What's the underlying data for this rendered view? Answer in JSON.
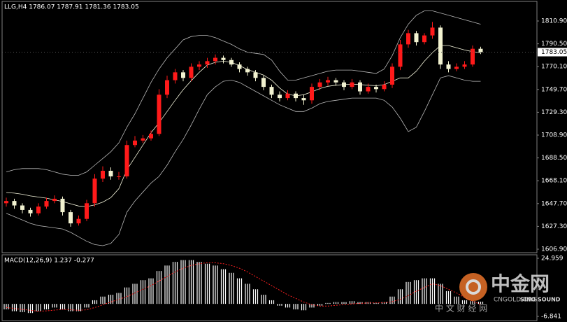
{
  "chart_data": [
    {
      "type": "candlestick",
      "title": "LLG,H4  1786.07 1787.91 1781.36 1783.05",
      "open": [
        1648,
        1650,
        1646,
        1642,
        1639,
        1645,
        1650,
        1652,
        1640,
        1630,
        1634,
        1648,
        1670,
        1677,
        1672,
        1672,
        1700,
        1704,
        1706,
        1710,
        1745,
        1758,
        1765,
        1760,
        1770,
        1772,
        1775,
        1778,
        1776,
        1772,
        1768,
        1765,
        1760,
        1752,
        1745,
        1742,
        1746,
        1742,
        1740,
        1752,
        1756,
        1758,
        1756,
        1752,
        1756,
        1748,
        1752,
        1750,
        1754,
        1770,
        1790,
        1800,
        1792,
        1798,
        1805,
        1772,
        1768,
        1770,
        1772,
        1786.07
      ],
      "high": [
        1653,
        1652,
        1648,
        1644,
        1648,
        1653,
        1655,
        1654,
        1642,
        1637,
        1651,
        1674,
        1681,
        1680,
        1676,
        1704,
        1708,
        1709,
        1713,
        1750,
        1762,
        1768,
        1767,
        1773,
        1775,
        1778,
        1781,
        1780,
        1778,
        1774,
        1770,
        1767,
        1762,
        1754,
        1748,
        1749,
        1748,
        1745,
        1755,
        1759,
        1761,
        1760,
        1758,
        1759,
        1758,
        1755,
        1754,
        1757,
        1773,
        1794,
        1803,
        1802,
        1800,
        1810,
        1807,
        1775,
        1773,
        1775,
        1789,
        1787.91
      ],
      "low": [
        1645,
        1643,
        1639,
        1636,
        1637,
        1643,
        1648,
        1637,
        1627,
        1628,
        1632,
        1645,
        1667,
        1669,
        1669,
        1670,
        1698,
        1702,
        1704,
        1708,
        1742,
        1755,
        1757,
        1757,
        1767,
        1769,
        1772,
        1773,
        1770,
        1765,
        1762,
        1757,
        1749,
        1742,
        1739,
        1740,
        1739,
        1736,
        1737,
        1749,
        1753,
        1753,
        1749,
        1750,
        1745,
        1746,
        1747,
        1748,
        1751,
        1767,
        1787,
        1789,
        1790,
        1795,
        1768,
        1765,
        1766,
        1768,
        1770,
        1781.36
      ],
      "close": [
        1650,
        1646,
        1642,
        1639,
        1645,
        1650,
        1652,
        1640,
        1630,
        1634,
        1648,
        1670,
        1677,
        1672,
        1672,
        1700,
        1704,
        1706,
        1710,
        1745,
        1758,
        1765,
        1760,
        1770,
        1772,
        1775,
        1778,
        1776,
        1772,
        1768,
        1765,
        1760,
        1752,
        1745,
        1742,
        1746,
        1742,
        1740,
        1752,
        1756,
        1758,
        1756,
        1752,
        1756,
        1748,
        1752,
        1750,
        1754,
        1770,
        1790,
        1800,
        1792,
        1798,
        1805,
        1772,
        1768,
        1770,
        1772,
        1786.07,
        1783.05
      ],
      "up_color": "#ff1a1a",
      "down_color": "#f2f2d0",
      "lines": [
        {
          "color": "#b8b8b8",
          "values": [
            1676,
            1678,
            1679,
            1679,
            1679,
            1678,
            1676,
            1674,
            1673,
            1673,
            1676,
            1682,
            1688,
            1694,
            1702,
            1716,
            1728,
            1742,
            1756,
            1768,
            1778,
            1786,
            1794,
            1797,
            1798,
            1798,
            1796,
            1793,
            1790,
            1786,
            1783,
            1782,
            1781,
            1776,
            1766,
            1758,
            1758,
            1760,
            1762,
            1764,
            1766,
            1767,
            1767,
            1767,
            1766,
            1765,
            1764,
            1768,
            1780,
            1796,
            1808,
            1816,
            1820,
            1820,
            1818,
            1816,
            1814,
            1812,
            1810,
            1808
          ]
        },
        {
          "color": "#f5f5dc",
          "values": [
            1657.5,
            1657,
            1656,
            1654.5,
            1653.5,
            1652.5,
            1651,
            1649.5,
            1647.5,
            1645.5,
            1645,
            1646.5,
            1649,
            1653,
            1661,
            1678,
            1689,
            1700,
            1711,
            1720,
            1730,
            1740,
            1749.5,
            1757.5,
            1765,
            1771.5,
            1774,
            1775,
            1774,
            1771,
            1767.5,
            1765,
            1762.5,
            1758,
            1751,
            1745.5,
            1744,
            1745,
            1747.5,
            1750.5,
            1752.5,
            1753.5,
            1754,
            1754.5,
            1754,
            1753.5,
            1753,
            1754,
            1757,
            1760,
            1760,
            1766,
            1775,
            1782.5,
            1789,
            1789,
            1787,
            1785,
            1783.5,
            1782.5
          ]
        },
        {
          "color": "#b8b8b8",
          "values": [
            1639,
            1636,
            1633,
            1630,
            1628,
            1627,
            1626,
            1625,
            1622,
            1618,
            1614,
            1611,
            1610,
            1612,
            1620,
            1640,
            1650,
            1658,
            1666,
            1672,
            1682,
            1694,
            1705,
            1718,
            1732,
            1745,
            1752,
            1757,
            1758,
            1756,
            1752,
            1748,
            1744,
            1740,
            1736,
            1733,
            1730,
            1730,
            1733,
            1737,
            1739,
            1740,
            1741,
            1742,
            1742,
            1742,
            1742,
            1740,
            1734,
            1724,
            1712,
            1716,
            1730,
            1745,
            1760,
            1762,
            1760,
            1758,
            1757,
            1757
          ]
        }
      ],
      "last_price": 1783.05,
      "ylim": [
        1603.77,
        1829.67
      ],
      "yticks": [
        {
          "value": 1810.9,
          "label": "1810.90"
        },
        {
          "value": 1790.5,
          "label": "1790.50"
        },
        {
          "value": 1770.1,
          "label": "1770.10"
        },
        {
          "value": 1749.7,
          "label": "1749.70"
        },
        {
          "value": 1729.3,
          "label": "1729.30"
        },
        {
          "value": 1708.9,
          "label": "1708.90"
        },
        {
          "value": 1688.5,
          "label": "1688.50"
        },
        {
          "value": 1668.1,
          "label": "1668.10"
        },
        {
          "value": 1647.7,
          "label": "1647.70"
        },
        {
          "value": 1627.3,
          "label": "1627.30"
        },
        {
          "value": 1606.9,
          "label": "1606.90"
        }
      ]
    },
    {
      "type": "macd",
      "title": "MACD(12,26,9) 1.237 -0.277",
      "color": "#ffffff",
      "values": [
        -3,
        -4,
        -4.5,
        -5,
        -4,
        -3,
        -2,
        -3,
        -4,
        -4,
        -2,
        2,
        4,
        5,
        6,
        9,
        11,
        13,
        14,
        18,
        21,
        23,
        24,
        24,
        23,
        22,
        21,
        19,
        17,
        14,
        11,
        8,
        5,
        2,
        -1,
        -2,
        -3,
        -3.5,
        -2,
        -1,
        0.5,
        1,
        1,
        1.5,
        1,
        1,
        0.5,
        1,
        4,
        8,
        12,
        13,
        14,
        14,
        11,
        7,
        4,
        2,
        1.5,
        1.237
      ],
      "signal": {
        "color": "#ff2020",
        "values": [
          -2,
          -2.5,
          -3,
          -3.5,
          -4,
          -3.8,
          -3.4,
          -3,
          -3.2,
          -3.5,
          -3.2,
          -2,
          -0.5,
          1,
          2.5,
          4,
          6,
          8,
          10,
          12.5,
          15,
          17.5,
          19.5,
          21,
          22,
          22.5,
          22.5,
          22,
          21,
          19.5,
          17.5,
          15,
          12.5,
          10,
          7.5,
          5,
          3,
          1,
          -0.5,
          -1.2,
          -1.2,
          -0.8,
          -0.4,
          0,
          0.3,
          0.5,
          0.6,
          0.6,
          1.2,
          2.5,
          4.5,
          7,
          9,
          11,
          10,
          8,
          6,
          3.5,
          1.5,
          -0.277
        ]
      },
      "ylim": [
        -6.841,
        24.959
      ],
      "yticks": [
        24.959,
        -6.841
      ]
    }
  ],
  "watermark": {
    "logo": "中金网",
    "url": "CNGOLD.ORG",
    "brand": "SINO SOUND",
    "sub": "中 文 财 经 网"
  }
}
